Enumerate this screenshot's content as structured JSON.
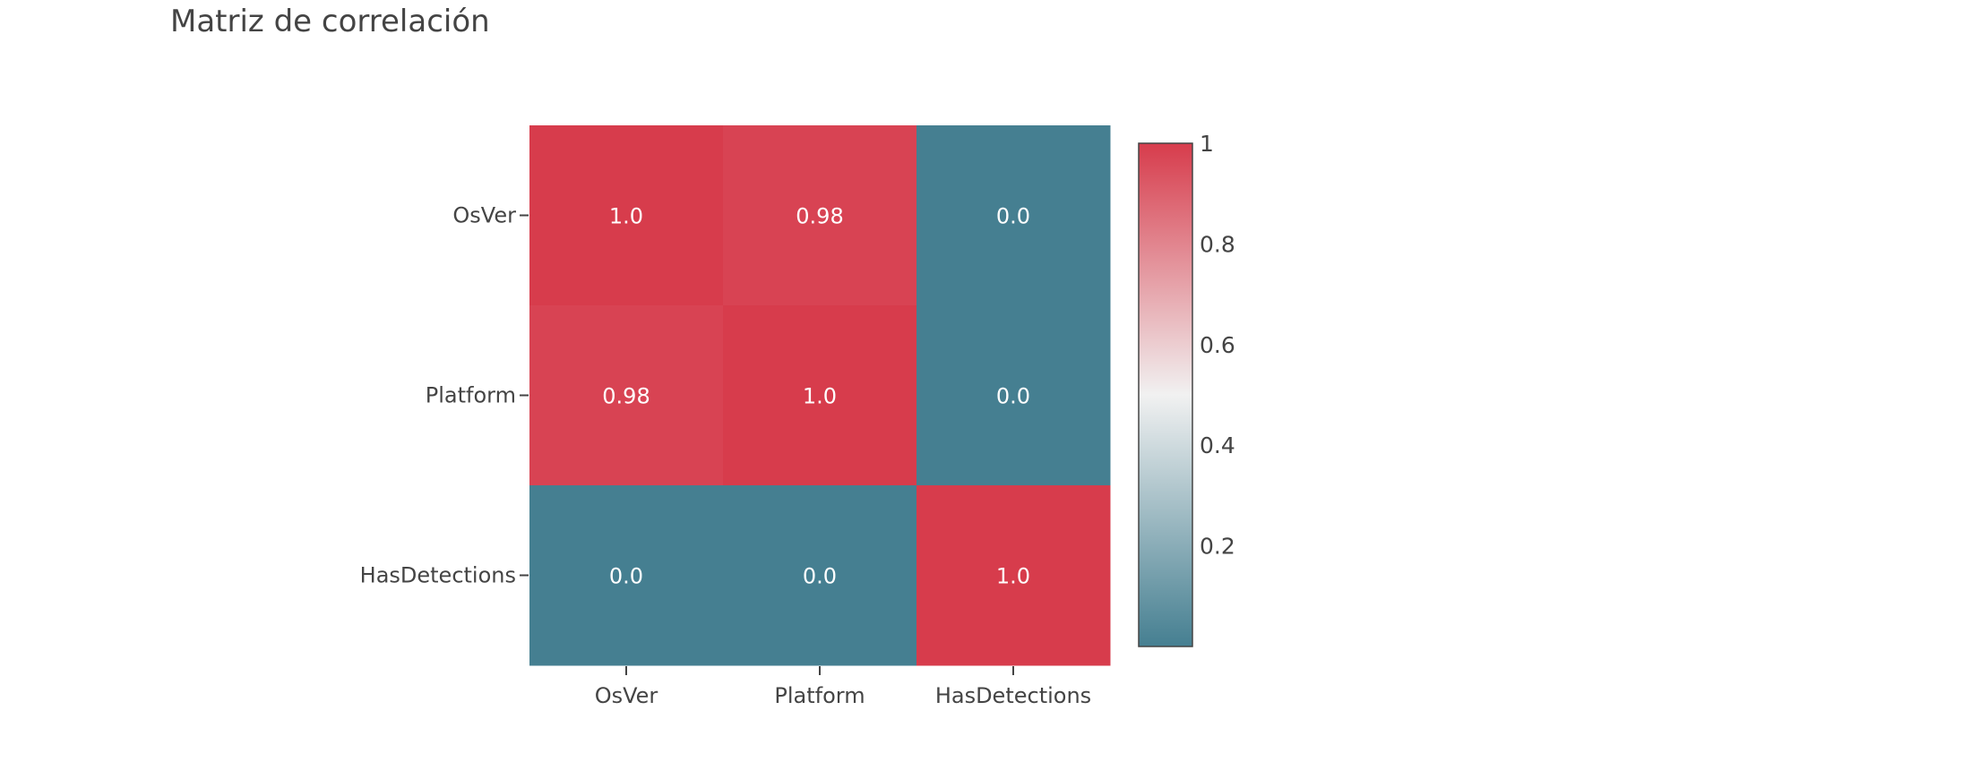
{
  "chart_data": {
    "type": "heatmap",
    "title": "Matriz de correlación",
    "x_categories": [
      "OsVer",
      "Platform",
      "HasDetections"
    ],
    "y_categories": [
      "OsVer",
      "Platform",
      "HasDetections"
    ],
    "z": [
      [
        1.0,
        0.98,
        0.0
      ],
      [
        0.98,
        1.0,
        0.0
      ],
      [
        0.0,
        0.0,
        1.0
      ]
    ],
    "cell_labels": [
      [
        "1.0",
        "0.98",
        "0.0"
      ],
      [
        "0.98",
        "1.0",
        "0.0"
      ],
      [
        "0.0",
        "0.0",
        "1.0"
      ]
    ],
    "colorscale": {
      "low": "#457f91",
      "mid": "#f1f1f1",
      "high": "#d73c4c"
    },
    "colorbar": {
      "range": [
        0,
        1
      ],
      "ticks": [
        1,
        0.8,
        0.6,
        0.4,
        0.2
      ],
      "tick_labels": [
        "1",
        "0.8",
        "0.6",
        "0.4",
        "0.2"
      ]
    },
    "grid": false,
    "legend": "colorbar-right"
  }
}
